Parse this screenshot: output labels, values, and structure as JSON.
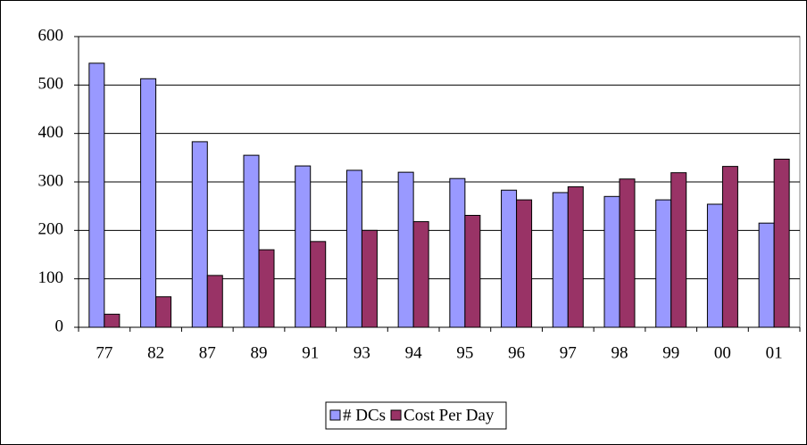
{
  "chart_data": {
    "type": "bar",
    "categories": [
      "77",
      "82",
      "87",
      "89",
      "91",
      "93",
      "94",
      "95",
      "96",
      "97",
      "98",
      "99",
      "00",
      "01"
    ],
    "series": [
      {
        "name": "# DCs",
        "color": "#9999ff",
        "values": [
          545,
          513,
          383,
          355,
          333,
          324,
          320,
          307,
          283,
          278,
          270,
          263,
          254,
          215
        ]
      },
      {
        "name": "Cost Per Day",
        "color": "#993366",
        "values": [
          27,
          63,
          107,
          160,
          177,
          200,
          218,
          231,
          263,
          290,
          306,
          319,
          332,
          347
        ]
      }
    ],
    "ylim": [
      0,
      600
    ],
    "yticks": [
      0,
      100,
      200,
      300,
      400,
      500,
      600
    ],
    "grid": true,
    "legend": "bottom"
  }
}
